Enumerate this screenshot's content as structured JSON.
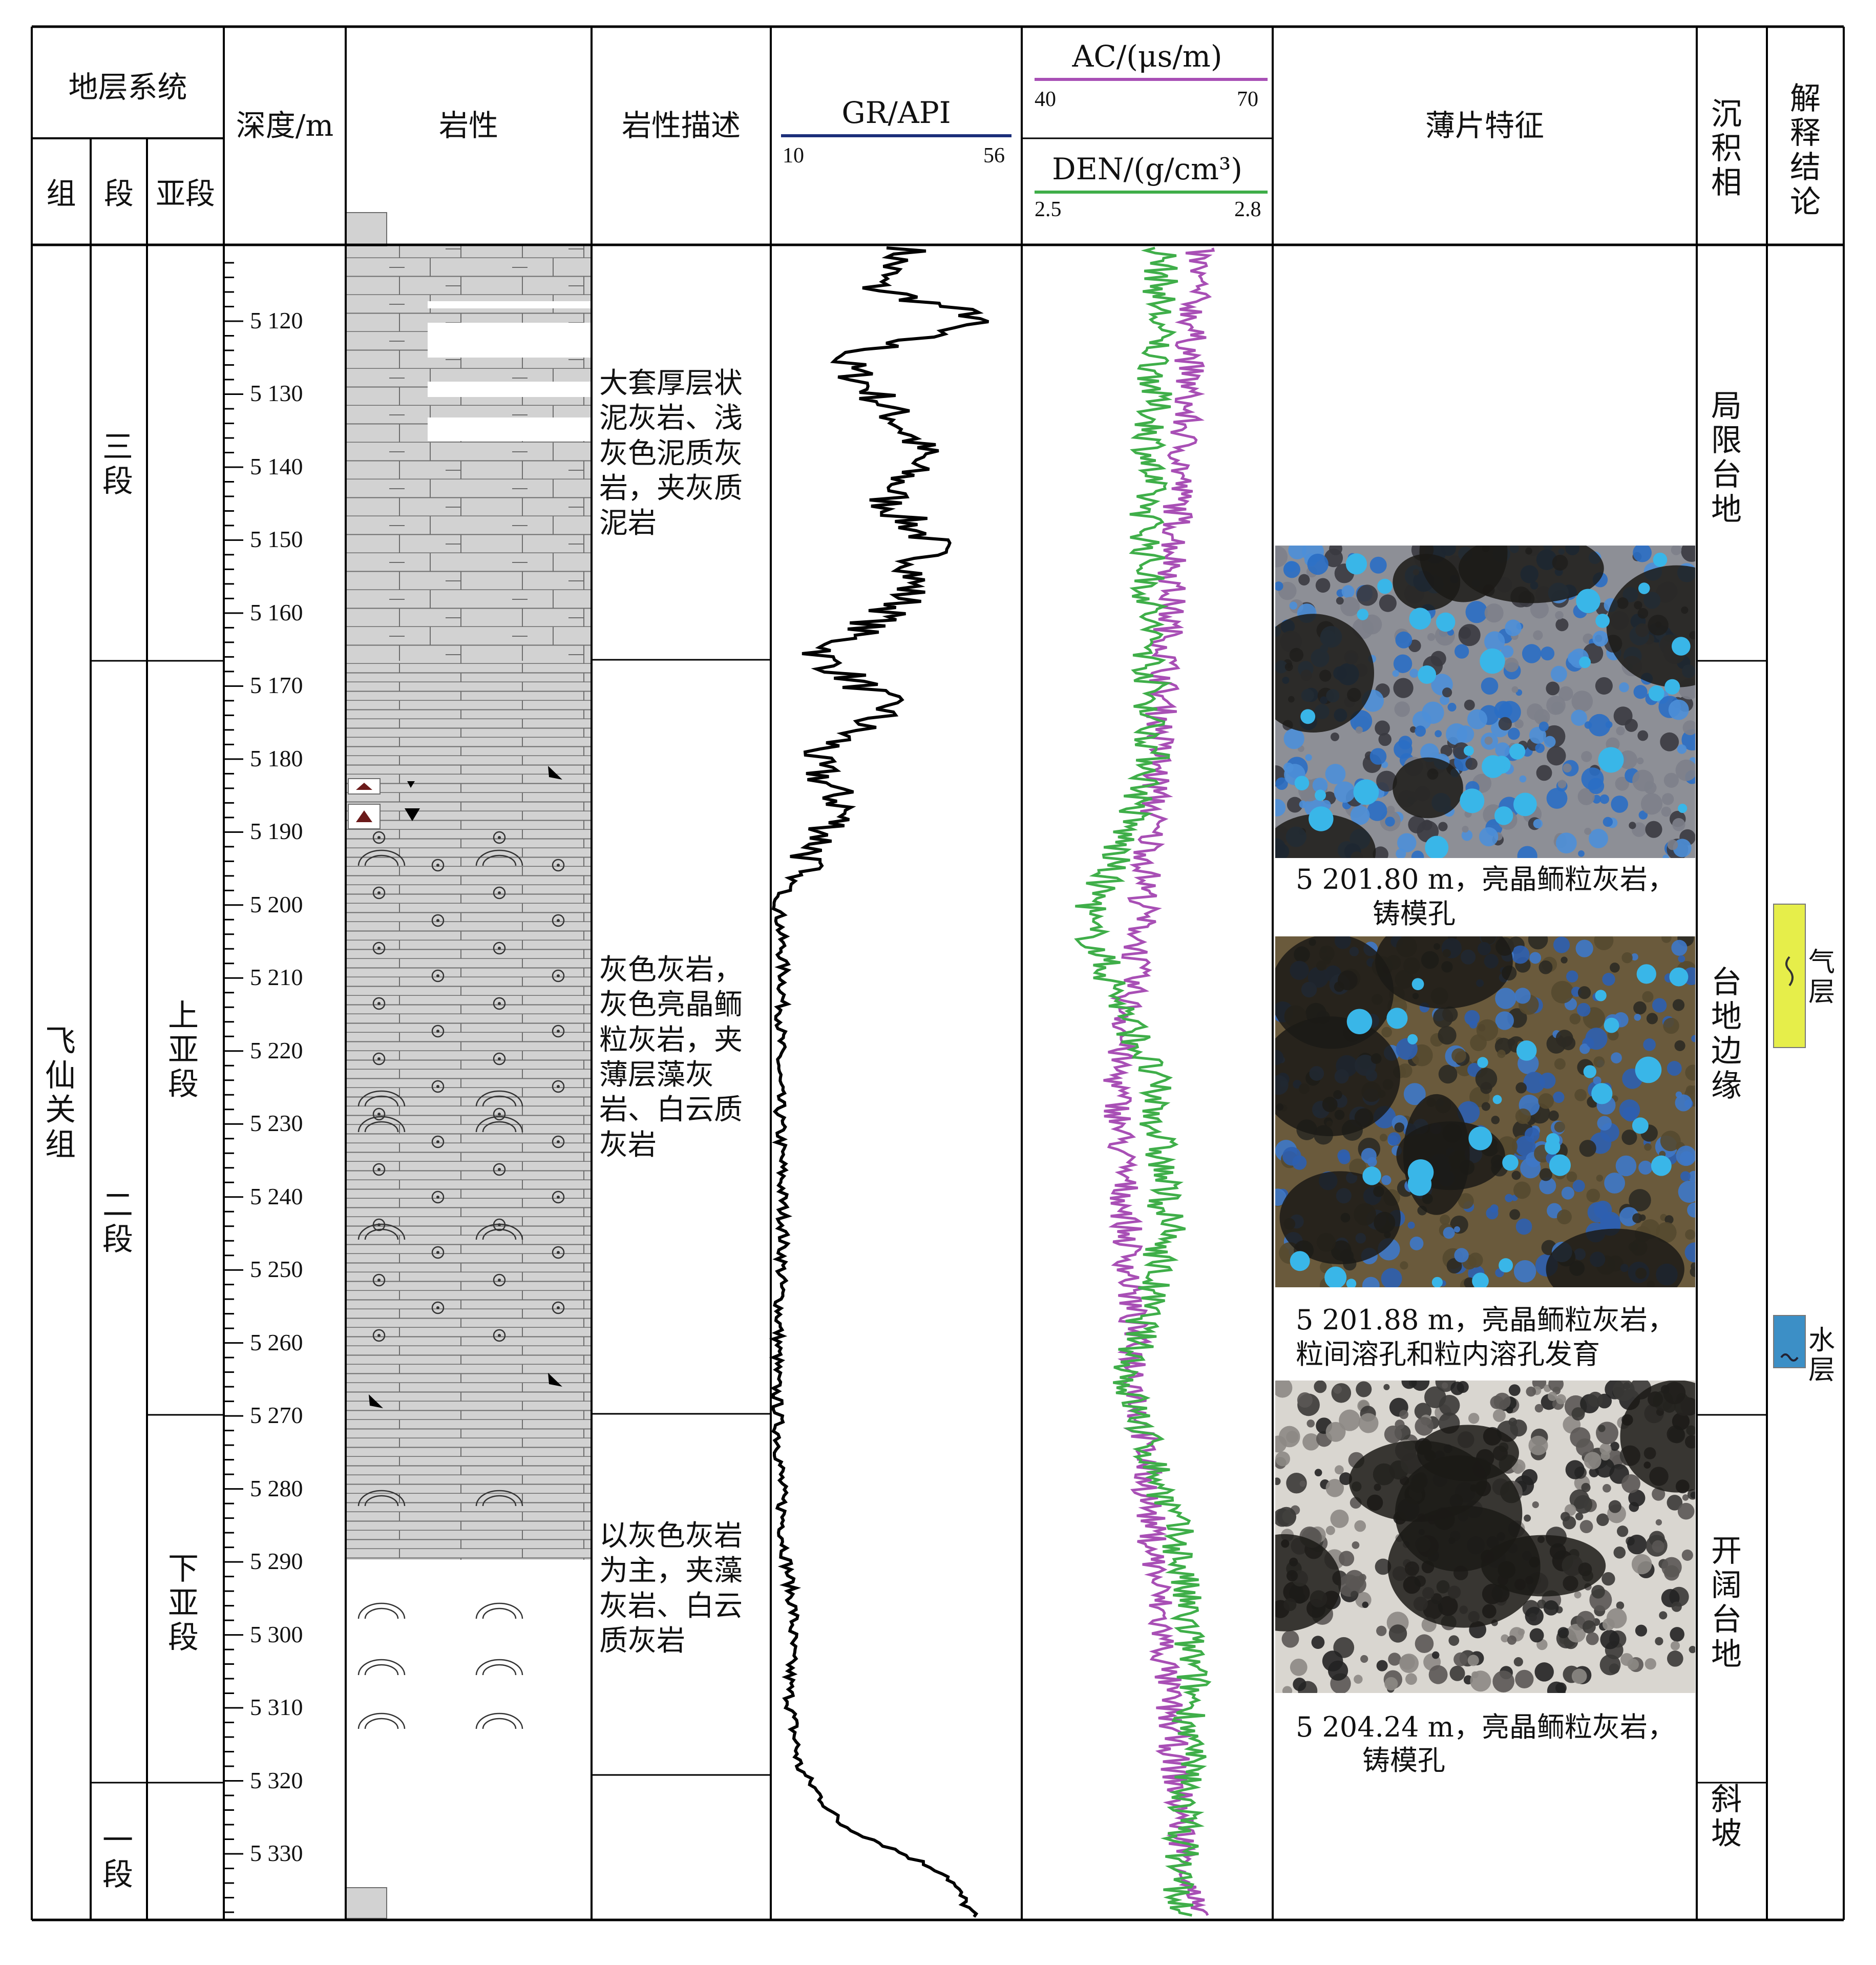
{
  "headers": {
    "strat_system": "地层系统",
    "formation": "组",
    "member": "段",
    "submember": "亚段",
    "depth": "深度/m",
    "lithology": "岩性",
    "lith_desc": "岩性描述",
    "gr": "GR/API",
    "gr_min": "10",
    "gr_max": "56",
    "ac": "AC/(μs/m)",
    "ac_min": "40",
    "ac_max": "70",
    "den": "DEN/(g/cm³)",
    "den_min": "2.5",
    "den_max": "2.8",
    "thin_section": "薄片特征",
    "facies": "沉积相",
    "interpretation": "解释结论"
  },
  "strata": {
    "formation": "飞仙关组",
    "members": [
      "三段",
      "二段",
      "一段"
    ],
    "submembers": [
      "上亚段",
      "下亚段"
    ]
  },
  "depth_labels": [
    "5 120",
    "5 130",
    "5 140",
    "5 150",
    "5 160",
    "5 170",
    "5 180",
    "5 190",
    "5 200",
    "5 210",
    "5 220",
    "5 230",
    "5 240",
    "5 250",
    "5 260",
    "5 270",
    "5 280",
    "5 290",
    "5 300",
    "5 310",
    "5 320",
    "5 330"
  ],
  "lith_descriptions": [
    "大套厚层状泥灰岩、浅灰色泥质灰岩，夹灰质泥岩",
    "灰色灰岩，灰色亮晶鲕粒灰岩，夹薄层藻灰岩、白云质灰岩",
    "以灰色灰岩为主，夹藻灰岩、白云质灰岩"
  ],
  "thin_sections": [
    {
      "caption1": "5 201.80 m，亮晶鲕粒灰岩，",
      "caption2": "铸模孔"
    },
    {
      "caption1": "5 201.88 m，亮晶鲕粒灰岩，",
      "caption2": "粒间溶孔和粒内溶孔发育"
    },
    {
      "caption1": "5 204.24 m，亮晶鲕粒灰岩，",
      "caption2": "铸模孔"
    }
  ],
  "facies": [
    "局限台地",
    "台地边缘",
    "开阔台地",
    "斜坡"
  ],
  "interpretation": {
    "gas": "气层",
    "water": "水层"
  },
  "colors": {
    "gr": "#000000",
    "ac": "#a84fb5",
    "den": "#3fae49",
    "gr_header": "#1c2f7a",
    "gas": "#e6ee4a",
    "water": "#3c8fc6",
    "lith": "#d0d0d0"
  },
  "chart_data": {
    "type": "line",
    "depth_range": [
      5110,
      5345
    ],
    "series": [
      {
        "name": "GR/API",
        "range": [
          10,
          56
        ]
      },
      {
        "name": "AC/(μs/m)",
        "range": [
          40,
          70
        ]
      },
      {
        "name": "DEN/(g/cm³)",
        "range": [
          2.5,
          2.8
        ]
      }
    ]
  }
}
